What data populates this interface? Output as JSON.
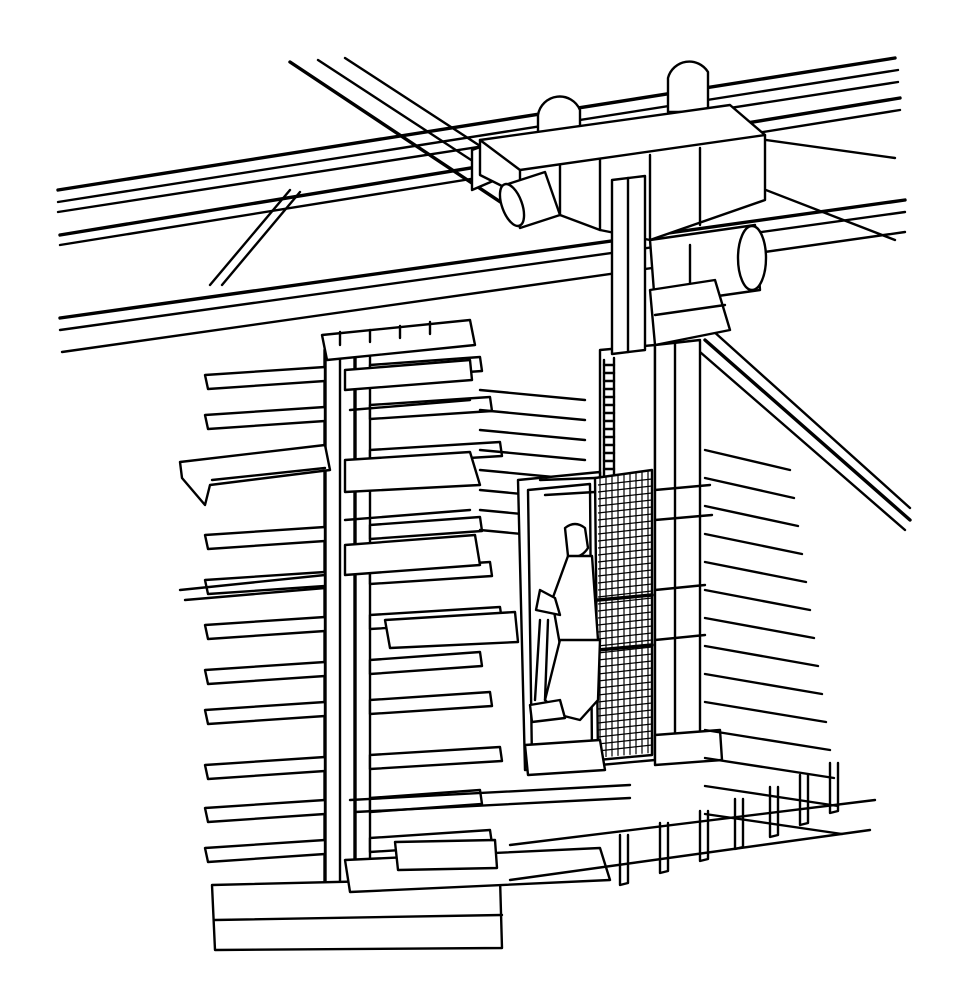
{
  "figure": {
    "subject": "overhead-crane-stacker-with-cantilever-racks",
    "colors": {
      "ink": "#000000",
      "paper": "#ffffff"
    },
    "components": [
      "runway-beams",
      "bridge-trolley",
      "drive-motor",
      "telescoping-mast",
      "operator-cab",
      "operator",
      "cantilever-rack",
      "bar-stock",
      "floor-supports"
    ]
  }
}
